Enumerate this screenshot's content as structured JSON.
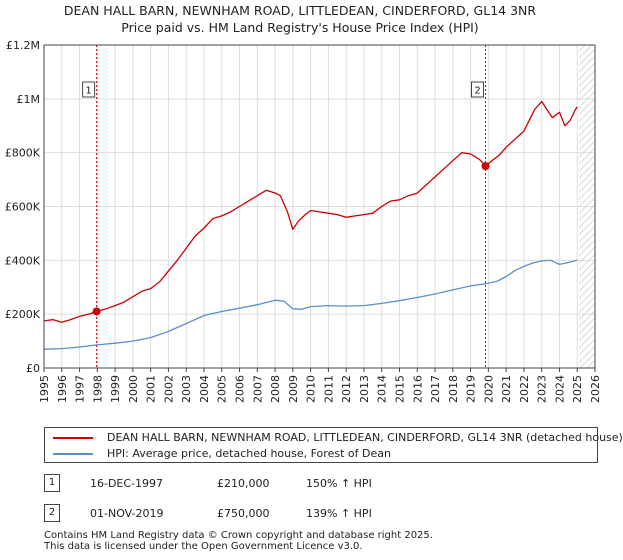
{
  "title": {
    "line1": "DEAN HALL BARN, NEWNHAM ROAD, LITTLEDEAN, CINDERFORD, GL14 3NR",
    "line2": "Price paid vs. HM Land Registry's House Price Index (HPI)"
  },
  "colors": {
    "property": "#cc0000",
    "hpi": "#5b8fc9",
    "grid": "#dddddd",
    "hatch": "#cccccc"
  },
  "chart_data": {
    "type": "line",
    "title": "DEAN HALL BARN, NEWNHAM ROAD, LITTLEDEAN, CINDERFORD, GL14 3NR — Price paid vs. HM Land Registry's House Price Index (HPI)",
    "xlabel": "",
    "ylabel": "",
    "xlim": [
      1995,
      2026
    ],
    "ylim": [
      0,
      1200000
    ],
    "x_ticks": [
      "1995",
      "1996",
      "1997",
      "1998",
      "1999",
      "2000",
      "2001",
      "2002",
      "2003",
      "2004",
      "2005",
      "2006",
      "2007",
      "2008",
      "2009",
      "2010",
      "2011",
      "2012",
      "2013",
      "2014",
      "2015",
      "2016",
      "2017",
      "2018",
      "2019",
      "2020",
      "2021",
      "2022",
      "2023",
      "2024",
      "2025",
      "2026"
    ],
    "y_ticks": [
      {
        "value": 0,
        "label": "£0"
      },
      {
        "value": 200000,
        "label": "£200K"
      },
      {
        "value": 400000,
        "label": "£400K"
      },
      {
        "value": 600000,
        "label": "£600K"
      },
      {
        "value": 800000,
        "label": "£800K"
      },
      {
        "value": 1000000,
        "label": "£1M"
      },
      {
        "value": 1200000,
        "label": "£1.2M"
      }
    ],
    "grid": true,
    "hatched_region_start": 2025.1,
    "series": [
      {
        "name": "DEAN HALL BARN, NEWNHAM ROAD, LITTLEDEAN, CINDERFORD, GL14 3NR (detached house)",
        "color": "#cc0000",
        "x": [
          1995.0,
          1995.5,
          1996.0,
          1996.5,
          1997.0,
          1997.5,
          1997.96,
          1998.5,
          1999.0,
          1999.5,
          2000.0,
          2000.5,
          2001.0,
          2001.5,
          2002.0,
          2002.5,
          2003.0,
          2003.5,
          2004.0,
          2004.5,
          2005.0,
          2005.5,
          2006.0,
          2006.5,
          2007.0,
          2007.5,
          2008.0,
          2008.3,
          2008.7,
          2009.0,
          2009.3,
          2009.7,
          2010.0,
          2010.5,
          2011.0,
          2011.5,
          2012.0,
          2012.5,
          2013.0,
          2013.5,
          2014.0,
          2014.5,
          2015.0,
          2015.5,
          2016.0,
          2016.5,
          2017.0,
          2017.5,
          2018.0,
          2018.5,
          2019.0,
          2019.5,
          2019.84,
          2020.2,
          2020.6,
          2021.0,
          2021.5,
          2022.0,
          2022.3,
          2022.6,
          2023.0,
          2023.3,
          2023.6,
          2024.0,
          2024.3,
          2024.6,
          2024.9,
          2025.0
        ],
        "values": [
          175000,
          180000,
          170000,
          180000,
          192000,
          200000,
          210000,
          220000,
          232000,
          245000,
          265000,
          285000,
          295000,
          320000,
          360000,
          400000,
          445000,
          490000,
          520000,
          555000,
          565000,
          580000,
          600000,
          620000,
          640000,
          660000,
          650000,
          640000,
          580000,
          515000,
          545000,
          570000,
          585000,
          580000,
          575000,
          570000,
          560000,
          565000,
          570000,
          575000,
          600000,
          620000,
          625000,
          640000,
          650000,
          680000,
          710000,
          740000,
          770000,
          800000,
          795000,
          775000,
          750000,
          770000,
          790000,
          820000,
          850000,
          880000,
          920000,
          960000,
          990000,
          960000,
          930000,
          950000,
          900000,
          920000,
          960000,
          970000
        ]
      },
      {
        "name": "HPI: Average price, detached house, Forest of Dean",
        "color": "#5b8fc9",
        "x": [
          1995.0,
          1996.0,
          1997.0,
          1998.0,
          1999.0,
          2000.0,
          2001.0,
          2002.0,
          2003.0,
          2004.0,
          2005.0,
          2006.0,
          2007.0,
          2008.0,
          2008.5,
          2009.0,
          2009.5,
          2010.0,
          2011.0,
          2012.0,
          2013.0,
          2014.0,
          2015.0,
          2016.0,
          2017.0,
          2018.0,
          2019.0,
          2019.84,
          2020.5,
          2021.0,
          2021.5,
          2022.0,
          2022.5,
          2023.0,
          2023.5,
          2024.0,
          2024.5,
          2025.0
        ],
        "values": [
          70000,
          72000,
          78000,
          86000,
          92000,
          100000,
          113000,
          136000,
          165000,
          195000,
          210000,
          222000,
          235000,
          252000,
          248000,
          220000,
          218000,
          228000,
          232000,
          230000,
          232000,
          240000,
          250000,
          262000,
          275000,
          290000,
          305000,
          313000,
          322000,
          340000,
          362000,
          378000,
          390000,
          398000,
          400000,
          385000,
          392000,
          400000
        ]
      }
    ],
    "annotations": [
      {
        "label": "1",
        "x": 1997.96,
        "value": 210000
      },
      {
        "label": "2",
        "x": 2019.84,
        "value": 750000
      }
    ]
  },
  "legend": {
    "property_label": "DEAN HALL BARN, NEWNHAM ROAD, LITTLEDEAN, CINDERFORD, GL14 3NR (detached house)",
    "hpi_label": "HPI: Average price, detached house, Forest of Dean"
  },
  "transactions": [
    {
      "id": "1",
      "date": "16-DEC-1997",
      "price": "£210,000",
      "hpi": "150% ↑ HPI"
    },
    {
      "id": "2",
      "date": "01-NOV-2019",
      "price": "£750,000",
      "hpi": "139% ↑ HPI"
    }
  ],
  "footer": {
    "line1": "Contains HM Land Registry data © Crown copyright and database right 2025.",
    "line2": "This data is licensed under the Open Government Licence v3.0."
  }
}
